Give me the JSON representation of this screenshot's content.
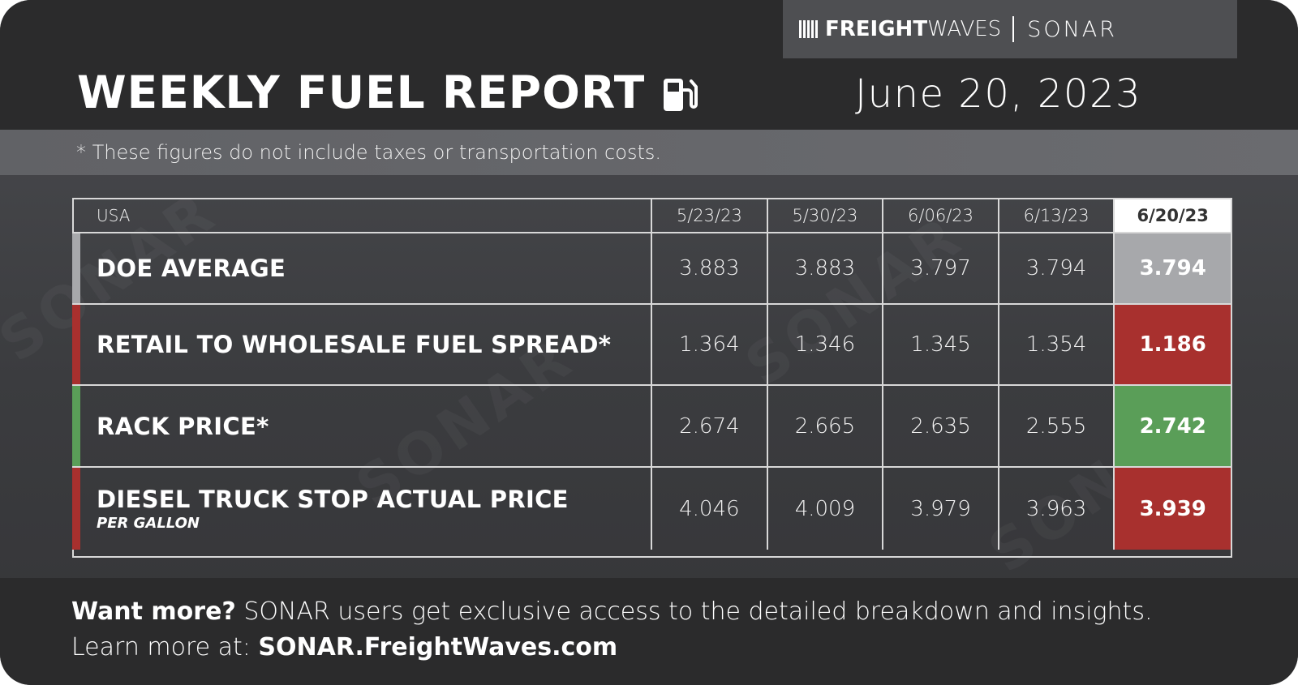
{
  "brand": {
    "name_bold": "FREIGHT",
    "name_light": "WAVES",
    "product": "SONAR"
  },
  "header": {
    "title": "WEEKLY FUEL REPORT",
    "date": "June 20, 2023"
  },
  "disclaimer": "* These figures do not include taxes or transportation costs.",
  "colors": {
    "red": "#a8302e",
    "green": "#5a9e58",
    "gray": "#a7a8ab",
    "background": "#2b2b2c"
  },
  "chart_data": {
    "type": "table",
    "region": "USA",
    "columns": [
      "5/23/23",
      "5/30/23",
      "6/06/23",
      "6/13/23",
      "6/20/23"
    ],
    "rows": [
      {
        "label": "DOE AVERAGE",
        "sublabel": "",
        "values": [
          "3.883",
          "3.883",
          "3.797",
          "3.794",
          "3.794"
        ],
        "status": "unchanged"
      },
      {
        "label": "RETAIL TO WHOLESALE FUEL SPREAD*",
        "sublabel": "",
        "values": [
          "1.364",
          "1.346",
          "1.345",
          "1.354",
          "1.186"
        ],
        "status": "down"
      },
      {
        "label": "RACK PRICE*",
        "sublabel": "",
        "values": [
          "2.674",
          "2.665",
          "2.635",
          "2.555",
          "2.742"
        ],
        "status": "up"
      },
      {
        "label": "DIESEL TRUCK STOP ACTUAL PRICE",
        "sublabel": "PER GALLON",
        "values": [
          "4.046",
          "4.009",
          "3.979",
          "3.963",
          "3.939"
        ],
        "status": "down"
      }
    ]
  },
  "footer": {
    "line1_bold": "Want more?",
    "line1_text": " SONAR users get exclusive access to the detailed breakdown and insights.",
    "line2_text": "Learn more at: ",
    "line2_link": "SONAR.FreightWaves.com"
  }
}
